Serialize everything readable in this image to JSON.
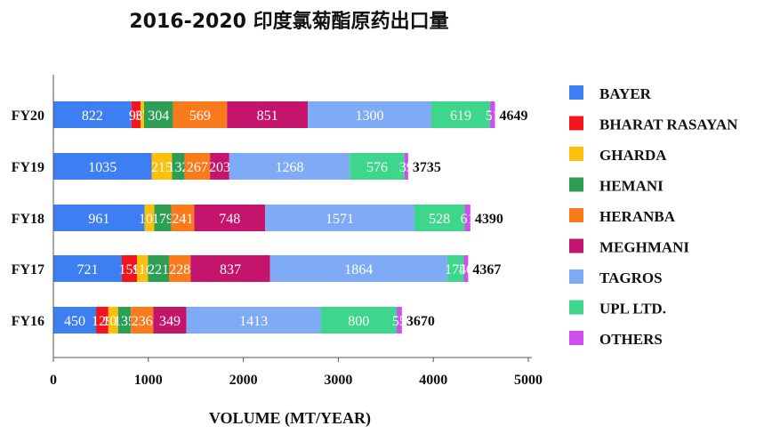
{
  "chart_data": {
    "type": "bar",
    "orientation": "horizontal",
    "stacked": true,
    "title": "2016-2020 印度氯菊酯原药出口量",
    "xlabel": "VOLUME (MT/YEAR)",
    "ylabel": "",
    "xlim": [
      0,
      5000
    ],
    "xticks": [
      0,
      1000,
      2000,
      3000,
      4000,
      5000
    ],
    "categories": [
      "FY20",
      "FY19",
      "FY18",
      "FY17",
      "FY16"
    ],
    "totals": [
      4649,
      3735,
      4390,
      4367,
      3670
    ],
    "legend_position": "right",
    "grid": false,
    "series": [
      {
        "name": "BAYER",
        "color": "#3d7ff2",
        "values": [
          822,
          1035,
          961,
          721,
          450
        ]
      },
      {
        "name": "BHARAT RASAYAN",
        "color": "#f5141e",
        "values": [
          96,
          null,
          null,
          159,
          129
        ]
      },
      {
        "name": "GHARDA",
        "color": "#fbbf0c",
        "values": [
          37,
          215,
          101,
          116,
          102
        ]
      },
      {
        "name": "HEMANI",
        "color": "#2f9e55",
        "values": [
          304,
          132,
          179,
          221,
          135
        ]
      },
      {
        "name": "HERANBA",
        "color": "#fb7a1c",
        "values": [
          569,
          267,
          241,
          228,
          236
        ]
      },
      {
        "name": "MEGHMANI",
        "color": "#c4146c",
        "values": [
          851,
          203,
          748,
          837,
          349
        ]
      },
      {
        "name": "TAGROS",
        "color": "#7faaf5",
        "values": [
          1300,
          1268,
          1571,
          1864,
          1413
        ]
      },
      {
        "name": "UPL LTD.",
        "color": "#3dd68c",
        "values": [
          619,
          576,
          528,
          175,
          800
        ]
      },
      {
        "name": "OTHERS",
        "color": "#cf4ef0",
        "values": [
          51,
          39,
          61,
          46,
          55
        ]
      }
    ]
  }
}
